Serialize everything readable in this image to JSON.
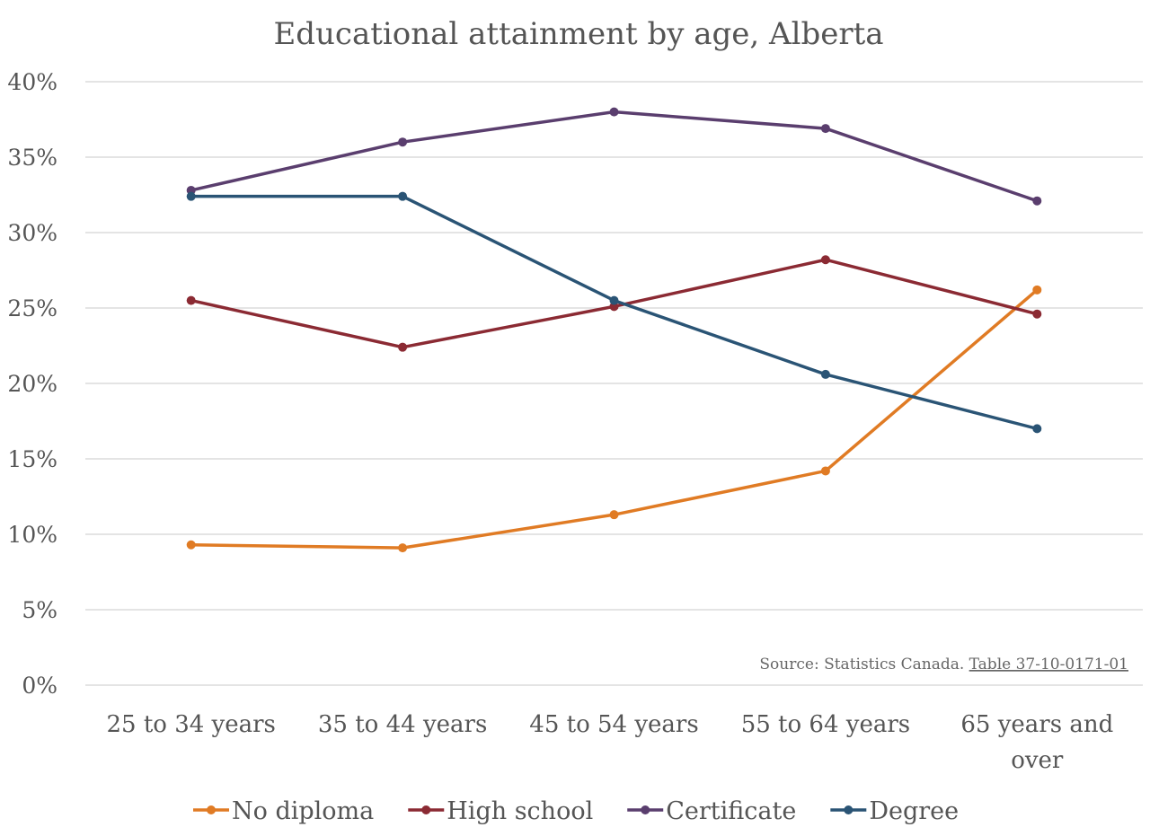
{
  "chart_data": {
    "type": "line",
    "title": "Educational attainment by age, Alberta",
    "categories": [
      "25 to 34 years",
      "35 to 44 years",
      "45 to 54 years",
      "55 to 64 years",
      "65 years and over"
    ],
    "category_lines": [
      [
        "25 to 34 years"
      ],
      [
        "35 to 44 years"
      ],
      [
        "45 to 54 years"
      ],
      [
        "55 to 64 years"
      ],
      [
        "65 years and",
        "over"
      ]
    ],
    "ylim": [
      0,
      40
    ],
    "yticks": [
      0,
      5,
      10,
      15,
      20,
      25,
      30,
      35,
      40
    ],
    "ytick_labels": [
      "0%",
      "5%",
      "10%",
      "15%",
      "20%",
      "25%",
      "30%",
      "35%",
      "40%"
    ],
    "xlabel": "",
    "ylabel": "",
    "grid": true,
    "legend_position": "bottom",
    "series": [
      {
        "name": "No diploma",
        "color": "#e07b24",
        "values": [
          9.3,
          9.1,
          11.3,
          14.2,
          26.2
        ]
      },
      {
        "name": "High school",
        "color": "#8b2a33",
        "values": [
          25.5,
          22.4,
          25.1,
          28.2,
          24.6
        ]
      },
      {
        "name": "Certificate",
        "color": "#5a3e6e",
        "values": [
          32.8,
          36.0,
          38.0,
          36.9,
          32.1
        ]
      },
      {
        "name": "Degree",
        "color": "#2a5475",
        "values": [
          32.4,
          32.4,
          25.5,
          20.6,
          17.0
        ]
      }
    ],
    "source_prefix": "Source: Statistics Canada. ",
    "source_link": "Table 37-10-0171-01"
  }
}
